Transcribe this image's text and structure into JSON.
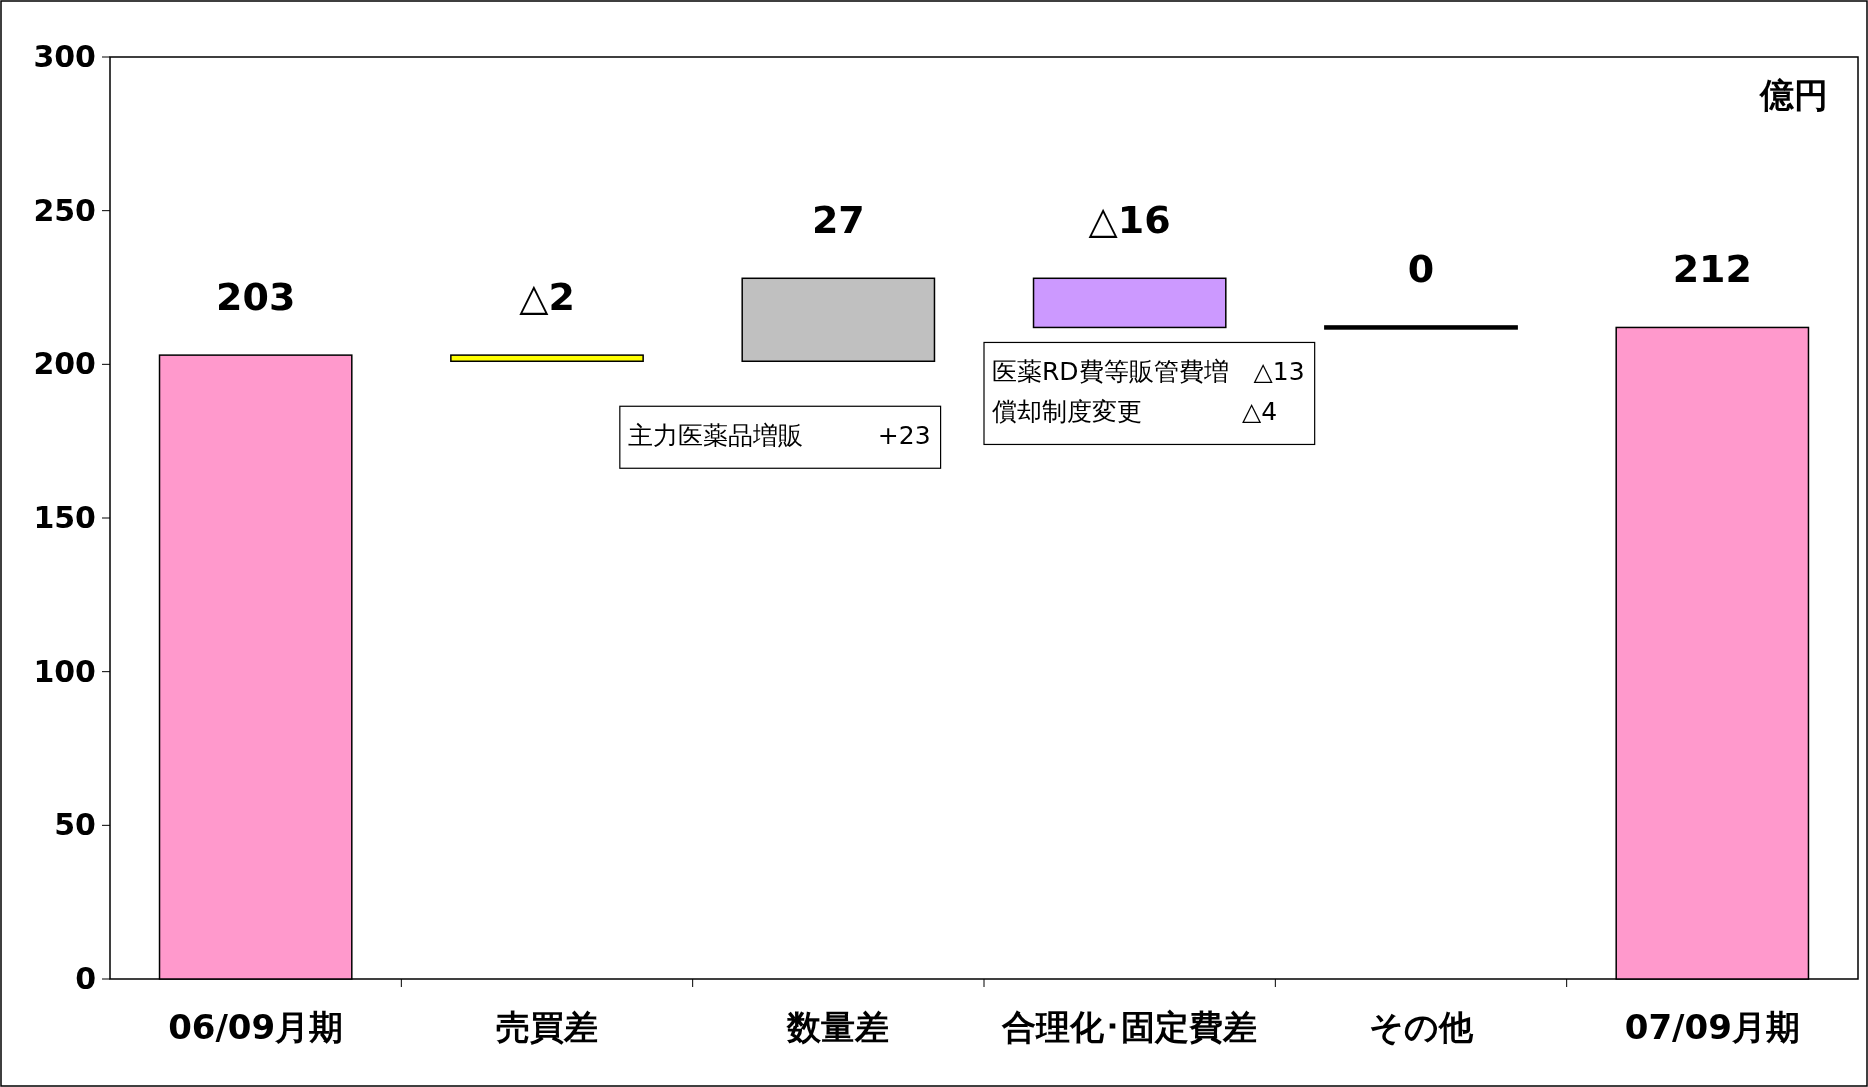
{
  "chart_data": {
    "type": "bar",
    "categories": [
      "06/09月期",
      "売買差",
      "数量差",
      "合理化･固定費差",
      "その他",
      "07/09月期"
    ],
    "values": [
      203,
      -2,
      27,
      -16,
      0,
      212
    ],
    "base": [
      0,
      203,
      201,
      228,
      212,
      0
    ],
    "colors": [
      "#ff99cc",
      "#ffff00",
      "#c0c0c0",
      "#cc99ff",
      "#000000",
      "#ff99cc"
    ],
    "value_labels": [
      "203",
      "△2",
      "27",
      "△16",
      "0",
      "212"
    ],
    "ylim": [
      0,
      300
    ],
    "yticks": [
      0,
      50,
      100,
      150,
      200,
      250,
      300
    ],
    "annotations": [
      "億円",
      {
        "text": "主力医薬品増販　　　+23",
        "x": "数量差",
        "y": 201
      },
      {
        "text": "医薬RD費等販管費増　△13\n償却制度変更　　　　△4",
        "x": "合理化･固定費差",
        "y": 212
      }
    ]
  }
}
